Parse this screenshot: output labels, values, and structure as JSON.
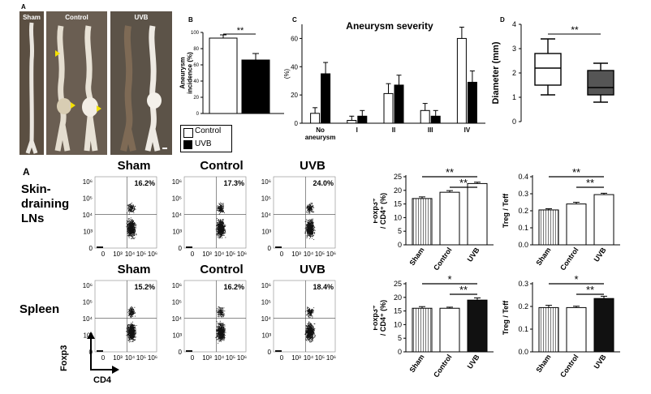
{
  "panelA_top": {
    "letter": "A",
    "photos": [
      {
        "label": "Sham"
      },
      {
        "label": "Control"
      },
      {
        "label": "UVB"
      }
    ]
  },
  "panelB": {
    "letter": "B",
    "ylabel": "Aneurysm\nincidence (%)",
    "sig": "**",
    "legend": [
      "Control",
      "UVB"
    ]
  },
  "panelC": {
    "letter": "C",
    "title": "Aneurysm severity",
    "ylabel": "(%)"
  },
  "panelD": {
    "letter": "D",
    "ylabel": "Diameter (mm)",
    "sig": "**"
  },
  "panelA_bottom": {
    "letter": "A",
    "col_heads": [
      "Sham",
      "Control",
      "UVB"
    ],
    "rows": [
      {
        "label_lines": [
          "Skin-",
          "draining",
          "LNs"
        ],
        "percents": [
          "16.2%",
          "17.3%",
          "24.0%"
        ]
      },
      {
        "label_lines": [
          "Spleen"
        ],
        "percents": [
          "15.2%",
          "16.2%",
          "18.4%"
        ]
      }
    ],
    "y_ticks": [
      "10⁶",
      "10⁵",
      "10⁴",
      "10³",
      "0"
    ],
    "x_ticks": [
      "0",
      "10³",
      "10⁴",
      "10⁵",
      "10⁶"
    ],
    "axis_y": "Foxp3",
    "axis_x": "CD4",
    "sig_bars": [
      {
        "ylabel": "Foxp3⁺\n/ CD4⁺ (%)",
        "sig_long": "**",
        "sig_short": "**"
      },
      {
        "ylabel": "Treg / Teff",
        "sig_long": "**",
        "sig_short": "**"
      },
      {
        "ylabel": "Foxp3⁺\n/ CD4⁺ (%)",
        "sig_long": "*",
        "sig_short": "**"
      },
      {
        "ylabel": "Treg / Teff",
        "sig_long": "*",
        "sig_short": "**"
      }
    ]
  },
  "chart_data": [
    {
      "type": "bar",
      "id": "B",
      "categories": [
        "Control",
        "UVB"
      ],
      "values": [
        93,
        66
      ],
      "errors": [
        4,
        8
      ],
      "ylabel": "Aneurysm incidence (%)",
      "ylim": [
        0,
        100
      ],
      "yticks": [
        0,
        20,
        40,
        60,
        80,
        100
      ],
      "colors": [
        "#ffffff",
        "#000000"
      ]
    },
    {
      "type": "bar",
      "id": "C",
      "title": "Aneurysm severity",
      "categories": [
        "No aneurysm",
        "I",
        "II",
        "III",
        "IV"
      ],
      "series": [
        {
          "name": "Control",
          "values": [
            7,
            2,
            21,
            9,
            60
          ],
          "errors": [
            4,
            3,
            7,
            5,
            8
          ]
        },
        {
          "name": "UVB",
          "values": [
            35,
            5,
            27,
            5,
            29
          ],
          "errors": [
            8,
            4,
            7,
            4,
            8
          ]
        }
      ],
      "ylabel": "(%)",
      "ylim": [
        0,
        70
      ],
      "yticks": [
        0,
        20,
        40,
        60
      ]
    },
    {
      "type": "box",
      "id": "D",
      "ylabel": "Diameter (mm)",
      "ylim": [
        0,
        4
      ],
      "yticks": [
        0,
        1,
        2,
        3,
        4
      ],
      "groups": [
        {
          "name": "Control",
          "min": 1.1,
          "q1": 1.5,
          "median": 2.2,
          "q3": 2.8,
          "max": 3.4,
          "fill": "#ffffff"
        },
        {
          "name": "UVB",
          "min": 0.8,
          "q1": 1.1,
          "median": 1.4,
          "q3": 2.1,
          "max": 2.4,
          "fill": "#555555"
        }
      ]
    },
    {
      "type": "bar",
      "id": "LN-foxp3",
      "categories": [
        "Sham",
        "Control",
        "UVB"
      ],
      "values": [
        17,
        19.3,
        22.5
      ],
      "errors": [
        0.6,
        0.6,
        0.5
      ],
      "ylabel": "Foxp3+ / CD4+ (%)",
      "ylim": [
        0,
        25
      ],
      "yticks": [
        0,
        5,
        10,
        15,
        20,
        25
      ]
    },
    {
      "type": "bar",
      "id": "LN-ratio",
      "categories": [
        "Sham",
        "Control",
        "UVB"
      ],
      "values": [
        0.205,
        0.24,
        0.295
      ],
      "errors": [
        0.007,
        0.01,
        0.008
      ],
      "ylabel": "Treg / Teff",
      "ylim": [
        0,
        0.4
      ],
      "yticks": [
        0.0,
        0.1,
        0.2,
        0.3,
        0.4
      ]
    },
    {
      "type": "bar",
      "id": "SP-foxp3",
      "categories": [
        "Sham",
        "Control",
        "UVB"
      ],
      "values": [
        16,
        16,
        19
      ],
      "errors": [
        0.6,
        0.4,
        0.8
      ],
      "ylabel": "Foxp3+ / CD4+ (%)",
      "ylim": [
        0,
        25
      ],
      "yticks": [
        0,
        5,
        10,
        15,
        20,
        25
      ]
    },
    {
      "type": "bar",
      "id": "SP-ratio",
      "categories": [
        "Sham",
        "Control",
        "UVB"
      ],
      "values": [
        0.195,
        0.195,
        0.235
      ],
      "errors": [
        0.01,
        0.006,
        0.01
      ],
      "ylabel": "Treg / Teff",
      "ylim": [
        0,
        0.3
      ],
      "yticks": [
        0.0,
        0.1,
        0.2,
        0.3
      ]
    }
  ]
}
